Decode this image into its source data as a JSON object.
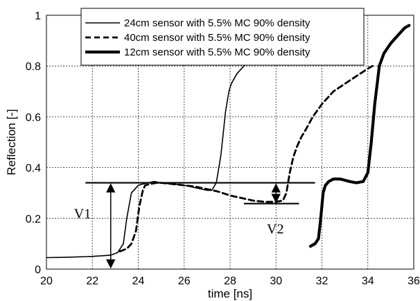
{
  "chart_data": {
    "type": "line",
    "xlabel": "time [ns]",
    "ylabel": "Reflection [-]",
    "xlim": [
      20,
      36
    ],
    "ylim": [
      0,
      1
    ],
    "xticks": [
      20,
      22,
      24,
      26,
      28,
      30,
      32,
      34,
      36
    ],
    "yticks": [
      0,
      0.2,
      0.4,
      0.6,
      0.8,
      1
    ],
    "ytick_labels": [
      "0",
      "0.2",
      "0.4",
      "0.6",
      "0.8",
      "1"
    ],
    "grid": true,
    "legend_position": "top-right",
    "series": [
      {
        "name": "24cm sensor with 5.5% MC 90% density",
        "style": "thin-solid",
        "x": [
          20.0,
          21.0,
          22.0,
          22.8,
          23.1,
          23.35,
          23.5,
          23.7,
          24.0,
          24.2,
          24.4,
          24.7,
          25.0,
          25.5,
          26.0,
          26.5,
          27.0,
          27.2,
          27.4,
          27.6,
          27.8,
          27.95,
          28.05,
          28.3,
          28.6,
          28.9
        ],
        "y": [
          0.045,
          0.047,
          0.05,
          0.055,
          0.065,
          0.1,
          0.2,
          0.3,
          0.33,
          0.335,
          0.34,
          0.345,
          0.34,
          0.335,
          0.33,
          0.32,
          0.31,
          0.31,
          0.34,
          0.45,
          0.62,
          0.7,
          0.73,
          0.77,
          0.8,
          0.82
        ]
      },
      {
        "name": "40cm sensor with 5.5% MC 90% density",
        "style": "dashed",
        "x": [
          23.2,
          23.5,
          23.7,
          23.9,
          24.05,
          24.2,
          24.3,
          24.5,
          24.8,
          25.0,
          25.5,
          26.0,
          26.5,
          27.0,
          27.5,
          28.0,
          28.5,
          29.0,
          29.5,
          30.0,
          30.3,
          30.45,
          30.6,
          30.75,
          30.9,
          31.1,
          31.3,
          31.6,
          32.0,
          32.5,
          33.0,
          33.5,
          34.0,
          34.2
        ],
        "y": [
          0.07,
          0.08,
          0.1,
          0.15,
          0.25,
          0.31,
          0.33,
          0.335,
          0.34,
          0.34,
          0.335,
          0.33,
          0.325,
          0.315,
          0.305,
          0.29,
          0.28,
          0.27,
          0.265,
          0.265,
          0.27,
          0.3,
          0.38,
          0.44,
          0.48,
          0.52,
          0.55,
          0.6,
          0.65,
          0.7,
          0.73,
          0.76,
          0.79,
          0.8
        ]
      },
      {
        "name": "12cm sensor with 5.5% MC 90% density",
        "style": "thick-solid",
        "x": [
          31.5,
          31.7,
          31.85,
          31.95,
          32.05,
          32.15,
          32.3,
          32.5,
          32.8,
          33.0,
          33.2,
          33.5,
          33.8,
          34.0,
          34.15,
          34.3,
          34.5,
          34.7,
          35.0,
          35.3,
          35.6,
          35.8
        ],
        "y": [
          0.09,
          0.1,
          0.12,
          0.2,
          0.3,
          0.33,
          0.345,
          0.355,
          0.355,
          0.35,
          0.345,
          0.34,
          0.345,
          0.38,
          0.5,
          0.65,
          0.8,
          0.85,
          0.89,
          0.92,
          0.95,
          0.96
        ]
      }
    ],
    "annotations": [
      {
        "text": "V1",
        "x": 21.2,
        "y": 0.22
      },
      {
        "text": "V2",
        "x": 29.6,
        "y": 0.16
      }
    ],
    "reference_lines": [
      {
        "x": [
          21.7,
          31.7
        ],
        "y": [
          0.34,
          0.34
        ]
      },
      {
        "x": [
          28.6,
          31.0
        ],
        "y": [
          0.258,
          0.258
        ]
      }
    ],
    "arrows": [
      {
        "x": 22.8,
        "y": [
          0.34,
          0.0
        ]
      },
      {
        "x": 30.0,
        "y": [
          0.34,
          0.258
        ]
      }
    ]
  }
}
